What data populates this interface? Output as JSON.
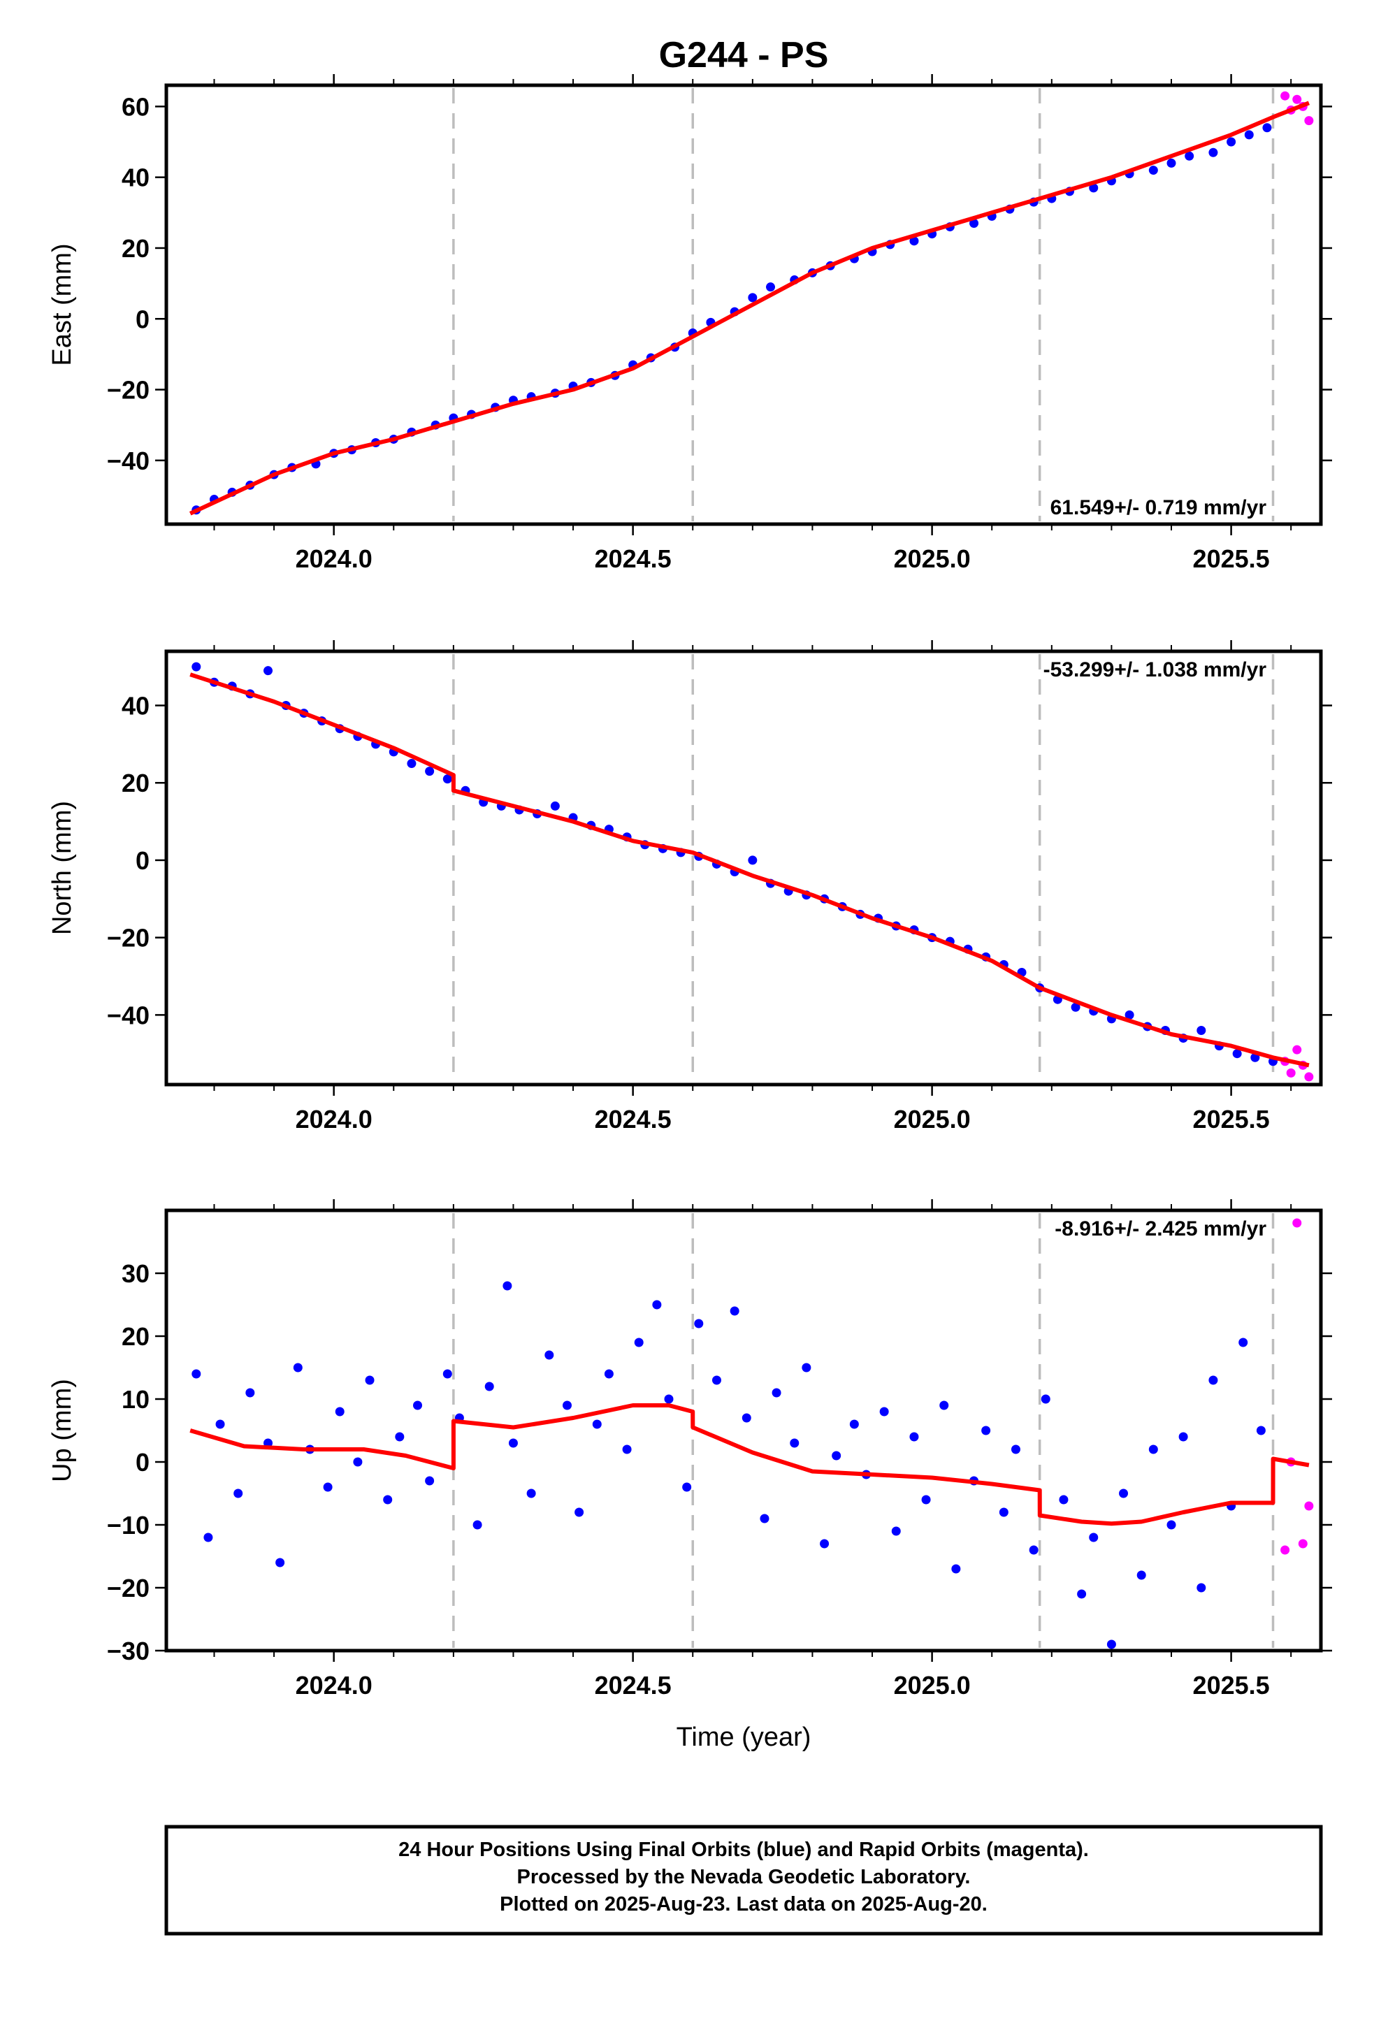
{
  "figure": {
    "title": "G244 - PS",
    "xlabel": "Time (year)"
  },
  "colors": {
    "final": "#0000ff",
    "rapid": "#ff00ff",
    "fit": "#ff0000",
    "event": "#bdbdbd"
  },
  "footer": {
    "line1": "24 Hour Positions Using Final Orbits (blue) and Rapid Orbits (magenta).",
    "line2": "Processed by the Nevada Geodetic Laboratory.",
    "line3": "Plotted on 2025-Aug-23. Last data on 2025-Aug-20."
  },
  "chart_data": [
    {
      "type": "scatter",
      "component": "east",
      "ylabel": "East (mm)",
      "rate_label": "61.549+/- 0.719 mm/yr",
      "xlim": [
        2023.72,
        2025.65
      ],
      "ylim": [
        -58,
        66
      ],
      "xticks": [
        2024.0,
        2024.5,
        2025.0,
        2025.5
      ],
      "xtick_labels": [
        "2024.0",
        "2024.5",
        "2025.0",
        "2025.5"
      ],
      "yticks": [
        -40,
        -20,
        0,
        20,
        40,
        60
      ],
      "ytick_labels": [
        "−40",
        "−20",
        "0",
        "20",
        "40",
        "60"
      ],
      "event_lines": [
        2024.2,
        2024.6,
        2025.18,
        2025.57
      ],
      "fit_line": {
        "x": [
          2023.76,
          2023.9,
          2024.0,
          2024.1,
          2024.2,
          2024.3,
          2024.4,
          2024.5,
          2024.6,
          2024.7,
          2024.8,
          2024.9,
          2025.0,
          2025.1,
          2025.18,
          2025.3,
          2025.4,
          2025.5,
          2025.57,
          2025.63
        ],
        "y": [
          -55,
          -44,
          -38,
          -34,
          -29,
          -24,
          -20,
          -14,
          -5,
          4,
          13,
          20,
          25,
          30,
          34,
          40,
          46,
          52,
          57,
          61
        ]
      },
      "series": [
        {
          "orbit": "final",
          "x": [
            2023.77,
            2023.8,
            2023.83,
            2023.86,
            2023.9,
            2023.93,
            2023.97,
            2024.0,
            2024.03,
            2024.07,
            2024.1,
            2024.13,
            2024.17,
            2024.2,
            2024.23,
            2024.27,
            2024.3,
            2024.33,
            2024.37,
            2024.4,
            2024.43,
            2024.47,
            2024.5,
            2024.53,
            2024.57,
            2024.6,
            2024.63,
            2024.67,
            2024.7,
            2024.73,
            2024.77,
            2024.8,
            2024.83,
            2024.87,
            2024.9,
            2024.93,
            2024.97,
            2025.0,
            2025.03,
            2025.07,
            2025.1,
            2025.13,
            2025.17,
            2025.2,
            2025.23,
            2025.27,
            2025.3,
            2025.33,
            2025.37,
            2025.4,
            2025.43,
            2025.47,
            2025.5,
            2025.53,
            2025.56
          ],
          "y": [
            -54,
            -51,
            -49,
            -47,
            -44,
            -42,
            -41,
            -38,
            -37,
            -35,
            -34,
            -32,
            -30,
            -28,
            -27,
            -25,
            -23,
            -22,
            -21,
            -19,
            -18,
            -16,
            -13,
            -11,
            -8,
            -4,
            -1,
            2,
            6,
            9,
            11,
            13,
            15,
            17,
            19,
            21,
            22,
            24,
            26,
            27,
            29,
            31,
            33,
            34,
            36,
            37,
            39,
            41,
            42,
            44,
            46,
            47,
            50,
            52,
            54
          ]
        },
        {
          "orbit": "rapid",
          "x": [
            2025.59,
            2025.6,
            2025.61,
            2025.62,
            2025.63
          ],
          "y": [
            63,
            59,
            62,
            60,
            56
          ]
        }
      ]
    },
    {
      "type": "scatter",
      "component": "north",
      "ylabel": "North (mm)",
      "rate_label": "-53.299+/- 1.038 mm/yr",
      "xlim": [
        2023.72,
        2025.65
      ],
      "ylim": [
        -58,
        54
      ],
      "xticks": [
        2024.0,
        2024.5,
        2025.0,
        2025.5
      ],
      "xtick_labels": [
        "2024.0",
        "2024.5",
        "2025.0",
        "2025.5"
      ],
      "yticks": [
        -40,
        -20,
        0,
        20,
        40
      ],
      "ytick_labels": [
        "−40",
        "−20",
        "0",
        "20",
        "40"
      ],
      "event_lines": [
        2024.2,
        2024.6,
        2025.18,
        2025.57
      ],
      "fit_line": {
        "x": [
          2023.76,
          2023.9,
          2024.0,
          2024.1,
          2024.2,
          2024.2001,
          2024.3,
          2024.4,
          2024.5,
          2024.6,
          2024.7,
          2024.8,
          2024.9,
          2025.0,
          2025.1,
          2025.18,
          2025.3,
          2025.4,
          2025.5,
          2025.57,
          2025.63
        ],
        "y": [
          48,
          41,
          35,
          29,
          22,
          18,
          14,
          10,
          5,
          2,
          -4,
          -9,
          -15,
          -20,
          -26,
          -33,
          -40,
          -45,
          -48,
          -51,
          -53
        ]
      },
      "series": [
        {
          "orbit": "final",
          "x": [
            2023.77,
            2023.8,
            2023.83,
            2023.86,
            2023.89,
            2023.92,
            2023.95,
            2023.98,
            2024.01,
            2024.04,
            2024.07,
            2024.1,
            2024.13,
            2024.16,
            2024.19,
            2024.22,
            2024.25,
            2024.28,
            2024.31,
            2024.34,
            2024.37,
            2024.4,
            2024.43,
            2024.46,
            2024.49,
            2024.52,
            2024.55,
            2024.58,
            2024.61,
            2024.64,
            2024.67,
            2024.7,
            2024.73,
            2024.76,
            2024.79,
            2024.82,
            2024.85,
            2024.88,
            2024.91,
            2024.94,
            2024.97,
            2025.0,
            2025.03,
            2025.06,
            2025.09,
            2025.12,
            2025.15,
            2025.18,
            2025.21,
            2025.24,
            2025.27,
            2025.3,
            2025.33,
            2025.36,
            2025.39,
            2025.42,
            2025.45,
            2025.48,
            2025.51,
            2025.54,
            2025.57
          ],
          "y": [
            50,
            46,
            45,
            43,
            49,
            40,
            38,
            36,
            34,
            32,
            30,
            28,
            25,
            23,
            21,
            18,
            15,
            14,
            13,
            12,
            14,
            11,
            9,
            8,
            6,
            4,
            3,
            2,
            1,
            -1,
            -3,
            0,
            -6,
            -8,
            -9,
            -10,
            -12,
            -14,
            -15,
            -17,
            -18,
            -20,
            -21,
            -23,
            -25,
            -27,
            -29,
            -33,
            -36,
            -38,
            -39,
            -41,
            -40,
            -43,
            -44,
            -46,
            -44,
            -48,
            -50,
            -51,
            -52
          ]
        },
        {
          "orbit": "rapid",
          "x": [
            2025.59,
            2025.6,
            2025.61,
            2025.62,
            2025.63
          ],
          "y": [
            -52,
            -55,
            -49,
            -53,
            -56
          ]
        }
      ]
    },
    {
      "type": "scatter",
      "component": "up",
      "ylabel": "Up (mm)",
      "rate_label": "-8.916+/- 2.425 mm/yr",
      "xlim": [
        2023.72,
        2025.65
      ],
      "ylim": [
        -30,
        40
      ],
      "xticks": [
        2024.0,
        2024.5,
        2025.0,
        2025.5
      ],
      "xtick_labels": [
        "2024.0",
        "2024.5",
        "2025.0",
        "2025.5"
      ],
      "yticks": [
        -30,
        -20,
        -10,
        0,
        10,
        20,
        30
      ],
      "ytick_labels": [
        "−30",
        "−20",
        "−10",
        "0",
        "10",
        "20",
        "30"
      ],
      "event_lines": [
        2024.2,
        2024.6,
        2025.18,
        2025.57
      ],
      "fit_line": {
        "x": [
          2023.76,
          2023.85,
          2023.95,
          2024.05,
          2024.12,
          2024.2,
          2024.2001,
          2024.3,
          2024.4,
          2024.5,
          2024.56,
          2024.6,
          2024.6001,
          2024.7,
          2024.8,
          2024.9,
          2025.0,
          2025.1,
          2025.18,
          2025.1801,
          2025.25,
          2025.3,
          2025.35,
          2025.42,
          2025.5,
          2025.57,
          2025.5701,
          2025.63
        ],
        "y": [
          5,
          2.5,
          2,
          2,
          1,
          -1,
          6.5,
          5.5,
          7,
          9,
          9,
          8,
          5.5,
          1.5,
          -1.5,
          -2,
          -2.5,
          -3.5,
          -4.5,
          -8.5,
          -9.5,
          -9.8,
          -9.5,
          -8,
          -6.5,
          -6.5,
          0.5,
          -0.5
        ]
      },
      "series": [
        {
          "orbit": "final",
          "x": [
            2023.77,
            2023.79,
            2023.81,
            2023.84,
            2023.86,
            2023.89,
            2023.91,
            2023.94,
            2023.96,
            2023.99,
            2024.01,
            2024.04,
            2024.06,
            2024.09,
            2024.11,
            2024.14,
            2024.16,
            2024.19,
            2024.21,
            2024.24,
            2024.26,
            2024.29,
            2024.3,
            2024.33,
            2024.36,
            2024.39,
            2024.41,
            2024.44,
            2024.46,
            2024.49,
            2024.51,
            2024.54,
            2024.56,
            2024.59,
            2024.61,
            2024.64,
            2024.67,
            2024.69,
            2024.72,
            2024.74,
            2024.77,
            2024.79,
            2024.82,
            2024.84,
            2024.87,
            2024.89,
            2024.92,
            2024.94,
            2024.97,
            2024.99,
            2025.02,
            2025.04,
            2025.07,
            2025.09,
            2025.12,
            2025.14,
            2025.17,
            2025.19,
            2025.22,
            2025.25,
            2025.27,
            2025.3,
            2025.32,
            2025.35,
            2025.37,
            2025.4,
            2025.42,
            2025.45,
            2025.47,
            2025.5,
            2025.52,
            2025.55
          ],
          "y": [
            14,
            -12,
            6,
            -5,
            11,
            3,
            -16,
            15,
            2,
            -4,
            8,
            0,
            13,
            -6,
            4,
            9,
            -3,
            14,
            7,
            -10,
            12,
            28,
            3,
            -5,
            17,
            9,
            -8,
            6,
            14,
            2,
            19,
            25,
            10,
            -4,
            22,
            13,
            24,
            7,
            -9,
            11,
            3,
            15,
            -13,
            1,
            6,
            -2,
            8,
            -11,
            4,
            -6,
            9,
            -17,
            -3,
            5,
            -8,
            2,
            -14,
            10,
            -6,
            -21,
            -12,
            -29,
            -5,
            -18,
            2,
            -10,
            4,
            -20,
            13,
            -7,
            19,
            5
          ]
        },
        {
          "orbit": "rapid",
          "x": [
            2025.59,
            2025.6,
            2025.61,
            2025.62,
            2025.63
          ],
          "y": [
            -14,
            0,
            38,
            -13,
            -7
          ]
        }
      ]
    }
  ]
}
